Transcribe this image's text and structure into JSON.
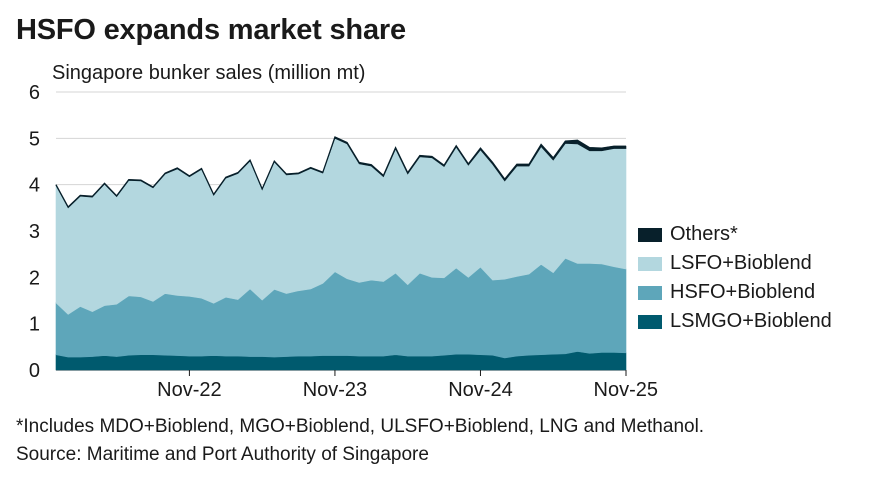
{
  "title": "HSFO expands market share",
  "footnote": "*Includes MDO+Bioblend, MGO+Bioblend, ULSFO+Bioblend, LNG and Methanol.",
  "source": "Source: Maritime and Port Authority of Singapore",
  "chart_data": {
    "type": "area",
    "stacked": true,
    "subtitle": "Singapore bunker sales (million mt)",
    "ylim": [
      0,
      6
    ],
    "yticks": [
      "0",
      "1",
      "2",
      "3",
      "4",
      "5",
      "6"
    ],
    "xtick_labels": [
      "Nov-22",
      "Nov-23",
      "Nov-24",
      "Nov-25"
    ],
    "xtick_months": [
      "2022-11",
      "2023-11",
      "2024-11",
      "2025-11"
    ],
    "x": [
      "2021-12",
      "2022-01",
      "2022-02",
      "2022-03",
      "2022-04",
      "2022-05",
      "2022-06",
      "2022-07",
      "2022-08",
      "2022-09",
      "2022-10",
      "2022-11",
      "2022-12",
      "2023-01",
      "2023-02",
      "2023-03",
      "2023-04",
      "2023-05",
      "2023-06",
      "2023-07",
      "2023-08",
      "2023-09",
      "2023-10",
      "2023-11",
      "2023-12",
      "2024-01",
      "2024-02",
      "2024-03",
      "2024-04",
      "2024-05",
      "2024-06",
      "2024-07",
      "2024-08",
      "2024-09",
      "2024-10",
      "2024-11",
      "2024-12",
      "2025-01",
      "2025-02",
      "2025-03",
      "2025-04",
      "2025-05",
      "2025-06",
      "2025-07",
      "2025-08",
      "2025-09",
      "2025-10",
      "2025-11"
    ],
    "legend": [
      "Others*",
      "LSFO+Bioblend",
      "HSFO+Bioblend",
      "LSMGO+Bioblend"
    ],
    "legend_position": "right",
    "series": [
      {
        "name": "LSMGO+Bioblend",
        "color": "#005a6e",
        "values": [
          0.33,
          0.28,
          0.28,
          0.29,
          0.31,
          0.29,
          0.32,
          0.33,
          0.33,
          0.32,
          0.31,
          0.3,
          0.3,
          0.31,
          0.3,
          0.3,
          0.29,
          0.29,
          0.28,
          0.29,
          0.3,
          0.3,
          0.31,
          0.31,
          0.31,
          0.3,
          0.3,
          0.3,
          0.33,
          0.3,
          0.3,
          0.3,
          0.32,
          0.34,
          0.34,
          0.33,
          0.32,
          0.26,
          0.3,
          0.32,
          0.33,
          0.34,
          0.35,
          0.4,
          0.36,
          0.38,
          0.38,
          0.37
        ]
      },
      {
        "name": "HSFO+Bioblend",
        "color": "#5ea6ba",
        "values": [
          1.12,
          0.92,
          1.09,
          0.97,
          1.08,
          1.13,
          1.28,
          1.25,
          1.15,
          1.33,
          1.3,
          1.29,
          1.25,
          1.13,
          1.27,
          1.22,
          1.46,
          1.22,
          1.46,
          1.36,
          1.41,
          1.45,
          1.56,
          1.81,
          1.66,
          1.59,
          1.64,
          1.61,
          1.76,
          1.54,
          1.79,
          1.7,
          1.67,
          1.86,
          1.66,
          1.89,
          1.62,
          1.7,
          1.72,
          1.75,
          1.95,
          1.76,
          2.06,
          1.9,
          1.94,
          1.91,
          1.85,
          1.81
        ]
      },
      {
        "name": "LSFO+Bioblend",
        "color": "#b3d7df",
        "values": [
          2.53,
          2.3,
          2.38,
          2.47,
          2.62,
          2.32,
          2.49,
          2.5,
          2.45,
          2.58,
          2.73,
          2.58,
          2.78,
          2.33,
          2.57,
          2.72,
          2.76,
          2.38,
          2.75,
          2.56,
          2.52,
          2.6,
          2.38,
          2.88,
          2.91,
          2.56,
          2.46,
          2.26,
          2.68,
          2.39,
          2.51,
          2.58,
          2.4,
          2.61,
          2.42,
          2.53,
          2.5,
          2.12,
          2.38,
          2.33,
          2.54,
          2.43,
          2.48,
          2.58,
          2.43,
          2.44,
          2.55,
          2.6
        ]
      },
      {
        "name": "Others*",
        "color": "#08202b",
        "values": [
          0.02,
          0.02,
          0.02,
          0.02,
          0.02,
          0.02,
          0.02,
          0.02,
          0.02,
          0.02,
          0.02,
          0.02,
          0.02,
          0.02,
          0.02,
          0.02,
          0.02,
          0.02,
          0.02,
          0.02,
          0.02,
          0.02,
          0.02,
          0.03,
          0.03,
          0.03,
          0.03,
          0.03,
          0.03,
          0.03,
          0.03,
          0.03,
          0.03,
          0.03,
          0.03,
          0.04,
          0.04,
          0.04,
          0.04,
          0.04,
          0.05,
          0.05,
          0.05,
          0.08,
          0.07,
          0.06,
          0.05,
          0.05
        ]
      }
    ]
  },
  "legend_labels": {
    "others": "Others*",
    "lsfo": "LSFO+Bioblend",
    "hsfo": "HSFO+Bioblend",
    "lsmgo": "LSMGO+Bioblend"
  },
  "colors": {
    "others": "#08202b",
    "lsfo": "#b3d7df",
    "hsfo": "#5ea6ba",
    "lsmgo": "#005a6e",
    "grid": "#d4d4d4"
  }
}
